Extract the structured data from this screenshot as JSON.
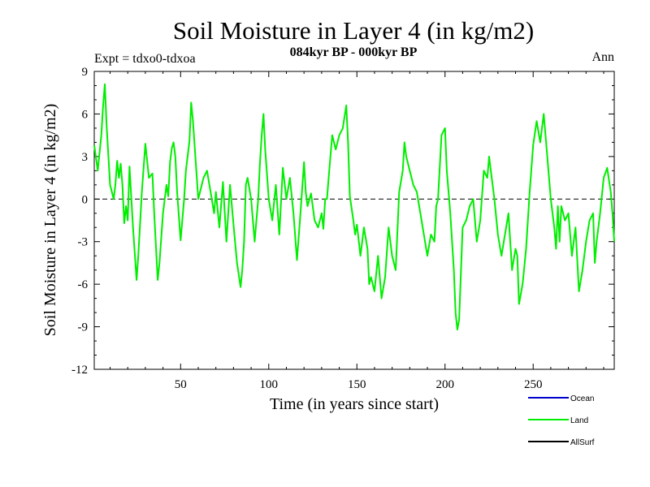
{
  "header": {
    "title": "Soil Moisture in Layer 4 (in kg/m2)",
    "subtitle": "084kyr BP - 000kyr BP",
    "expt_label": "Expt = tdxo0-tdxoa",
    "season_label": "Ann"
  },
  "chart_data": {
    "type": "line",
    "title": "Soil Moisture in Layer 4 (in kg/m2)",
    "subtitle": "084kyr BP - 000kyr BP",
    "xlabel": "Time (in years since start)",
    "ylabel": "Soil Moisture in Layer 4 (in kg/m2)",
    "xlim": [
      1,
      296
    ],
    "ylim": [
      -12,
      9
    ],
    "x_ticks": [
      50,
      100,
      150,
      200,
      250
    ],
    "y_ticks": [
      9,
      6,
      3,
      0,
      -3,
      -6,
      -9,
      -12
    ],
    "zero_line": true,
    "grid": false,
    "legend_position": "bottom-right",
    "series": [
      {
        "name": "Ocean",
        "color": "#0000cc",
        "values": []
      },
      {
        "name": "Land",
        "color": "#00ee00",
        "x": [
          1,
          3,
          5,
          6,
          7,
          8,
          10,
          12,
          13,
          14,
          15,
          16,
          17,
          18,
          19,
          20,
          21,
          23,
          25,
          26,
          28,
          30,
          32,
          34,
          35,
          37,
          38,
          40,
          42,
          43,
          44,
          45,
          46,
          47,
          48,
          50,
          52,
          53,
          55,
          56,
          57,
          60,
          63,
          65,
          67,
          69,
          70,
          72,
          74,
          76,
          78,
          80,
          82,
          84,
          85,
          86,
          87,
          88,
          90,
          92,
          94,
          95,
          96,
          97,
          98,
          100,
          102,
          104,
          106,
          108,
          110,
          112,
          114,
          116,
          118,
          120,
          121,
          122,
          124,
          126,
          128,
          130,
          131,
          132,
          133,
          134,
          136,
          138,
          140,
          142,
          144,
          145,
          146,
          148,
          149,
          150,
          152,
          153,
          154,
          156,
          157,
          158,
          160,
          162,
          164,
          166,
          168,
          170,
          172,
          174,
          176,
          177,
          178,
          180,
          182,
          184,
          186,
          188,
          190,
          192,
          194,
          195,
          196,
          198,
          200,
          201,
          202,
          203,
          204,
          205,
          206,
          207,
          208,
          210,
          212,
          214,
          216,
          218,
          220,
          222,
          224,
          225,
          226,
          228,
          230,
          232,
          234,
          236,
          237,
          238,
          240,
          241,
          242,
          244,
          246,
          248,
          250,
          252,
          254,
          256,
          258,
          260,
          262,
          263,
          264,
          265,
          266,
          268,
          270,
          272,
          274,
          276,
          278,
          280,
          282,
          284,
          285,
          286,
          288,
          290,
          292,
          294,
          295,
          296
        ],
        "values": [
          3.8,
          2.0,
          4.5,
          6.5,
          8.1,
          5.2,
          1.0,
          0.0,
          1.0,
          2.7,
          1.5,
          2.5,
          1.0,
          -1.7,
          -0.5,
          -1.5,
          2.3,
          -2.0,
          -5.7,
          -4.0,
          0.5,
          3.9,
          1.5,
          1.8,
          -1.0,
          -5.7,
          -4.5,
          -1.0,
          1.0,
          0.2,
          2.6,
          3.6,
          4.0,
          3.0,
          0.5,
          -2.9,
          0.0,
          2.0,
          4.1,
          6.8,
          5.5,
          0.0,
          1.5,
          2.0,
          0.5,
          -1.0,
          0.5,
          -2.0,
          1.2,
          -3.0,
          1.0,
          -1.8,
          -4.5,
          -6.2,
          -5.0,
          -3.0,
          1.0,
          1.5,
          0.0,
          -3.0,
          0.0,
          2.5,
          4.5,
          6.0,
          3.5,
          0.0,
          -1.5,
          1.0,
          -2.5,
          2.2,
          0.0,
          1.5,
          -1.0,
          -4.3,
          -1.0,
          2.6,
          0.5,
          -0.5,
          0.4,
          -1.5,
          -2.0,
          -1.0,
          -2.1,
          0.0,
          0.0,
          1.5,
          4.5,
          3.5,
          4.5,
          5.0,
          6.6,
          4.0,
          0.2,
          -1.5,
          -2.5,
          -1.8,
          -4.0,
          -3.0,
          -2.0,
          -3.5,
          -6.0,
          -5.5,
          -6.5,
          -4.0,
          -7.0,
          -5.5,
          -2.0,
          -4.0,
          -5.0,
          0.5,
          2.0,
          4.0,
          3.0,
          2.0,
          1.0,
          0.5,
          -1.0,
          -2.5,
          -4.0,
          -2.5,
          -3.0,
          -0.5,
          0.0,
          4.5,
          5.0,
          2.0,
          0.5,
          -1.0,
          -3.0,
          -5.0,
          -8.0,
          -9.2,
          -8.5,
          -2.0,
          -1.5,
          -0.5,
          0.0,
          -3.0,
          -1.5,
          2.0,
          1.5,
          3.0,
          2.0,
          0.0,
          -2.5,
          -4.0,
          -2.5,
          -1.0,
          -3.0,
          -5.0,
          -3.5,
          -4.0,
          -7.4,
          -6.0,
          -3.5,
          0.5,
          3.8,
          5.5,
          4.0,
          6.0,
          3.0,
          0.0,
          -2.0,
          -3.5,
          -0.5,
          -3.0,
          -0.5,
          -1.5,
          -1.0,
          -4.0,
          -2.0,
          -6.5,
          -5.0,
          -3.0,
          -1.5,
          -1.0,
          -4.5,
          -3.0,
          -1.0,
          1.5,
          2.2,
          0.5,
          -1.0,
          -3.0
        ]
      },
      {
        "name": "AllSurf",
        "color": "#000000",
        "values": []
      }
    ]
  }
}
